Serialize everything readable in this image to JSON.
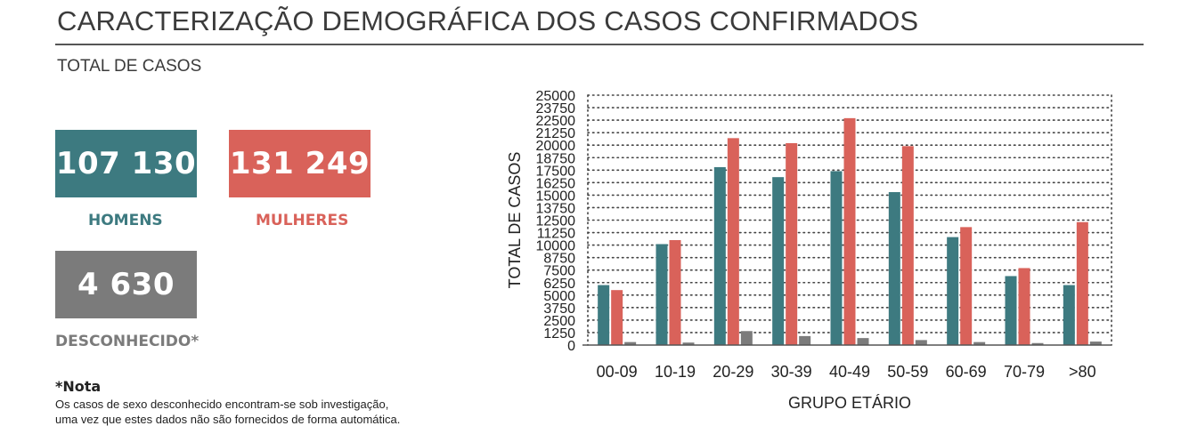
{
  "header": {
    "title": "CARACTERIZAÇÃO DEMOGRÁFICA DOS CASOS CONFIRMADOS",
    "subtitle": "TOTAL DE CASOS"
  },
  "stats": {
    "homens": {
      "value": "107 130",
      "label": "HOMENS",
      "color": "#3d7a80"
    },
    "mulheres": {
      "value": "131 249",
      "label": "MULHERES",
      "color": "#d9625a"
    },
    "desconhecido": {
      "value": "4 630",
      "label": "DESCONHECIDO*",
      "color": "#7b7b7b"
    }
  },
  "note": {
    "title": "*Nota",
    "line1": "Os casos de sexo desconhecido encontram-se sob investigação,",
    "line2": "uma vez que estes dados não são fornecidos de forma automática."
  },
  "chart_data": {
    "type": "bar",
    "categories": [
      "00-09",
      "10-19",
      "20-29",
      "30-39",
      "40-49",
      "50-59",
      "60-69",
      "70-79",
      ">80"
    ],
    "series": [
      {
        "key": "homens",
        "color": "#3d7a80",
        "values": [
          6000,
          10100,
          17800,
          16800,
          17400,
          15300,
          10800,
          6900,
          6000
        ]
      },
      {
        "key": "mulheres",
        "color": "#d9625a",
        "values": [
          5500,
          10500,
          20700,
          20200,
          22700,
          19900,
          11800,
          7700,
          12300
        ]
      },
      {
        "key": "desconhecido",
        "color": "#7b7b7b",
        "values": [
          300,
          250,
          1400,
          900,
          700,
          500,
          300,
          200,
          350
        ]
      }
    ],
    "xlabel": "GRUPO ETÁRIO",
    "ylabel": "TOTAL DE CASOS",
    "ylim": [
      0,
      25000
    ],
    "yticks": [
      "0",
      "1250",
      "2500",
      "3750",
      "5000",
      "6250",
      "7500",
      "8750",
      "10000",
      "11250",
      "12500",
      "13750",
      "15000",
      "16250",
      "17500",
      "18750",
      "20000",
      "21250",
      "22500",
      "23750",
      "25000"
    ],
    "grid": true,
    "grid_style": "dotted"
  }
}
